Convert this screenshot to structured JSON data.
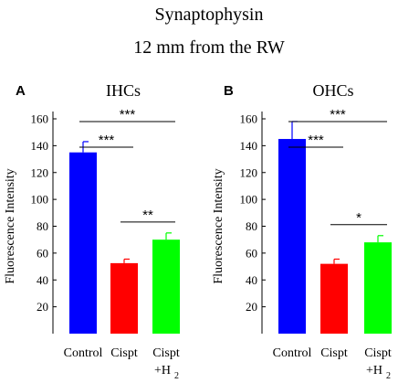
{
  "figure": {
    "title": "Synaptophysin",
    "subtitle": "12 mm from the RW"
  },
  "chart_data": [
    {
      "type": "bar",
      "panel_label": "A",
      "title": "IHCs",
      "ylabel": "Fluorescence Intensity",
      "xlabel": "",
      "ylim": [
        0,
        160
      ],
      "yticks": [
        "20",
        "40",
        "60",
        "80",
        "100",
        "120",
        "140",
        "160"
      ],
      "grid": false,
      "categories": [
        {
          "line1": "Control",
          "line2": ""
        },
        {
          "line1": "Cispt",
          "line2": ""
        },
        {
          "line1": "Cispt",
          "line2": "+H",
          "sub": "2"
        }
      ],
      "values": [
        135,
        52.5,
        70
      ],
      "errors": [
        8,
        3,
        5
      ],
      "colors": [
        "#0000ff",
        "#ff0000",
        "#00ff00"
      ],
      "significance": [
        {
          "from": 0,
          "to": 1,
          "label": "***",
          "level": 1
        },
        {
          "from": 0,
          "to": 2,
          "label": "***",
          "level": 2
        },
        {
          "from": 1,
          "to": 2,
          "label": "**",
          "level": 0
        }
      ]
    },
    {
      "type": "bar",
      "panel_label": "B",
      "title": "OHCs",
      "ylabel": "Fluorescence Intensity",
      "xlabel": "",
      "ylim": [
        0,
        160
      ],
      "yticks": [
        "20",
        "40",
        "60",
        "80",
        "100",
        "120",
        "140",
        "160"
      ],
      "grid": false,
      "categories": [
        {
          "line1": "Control",
          "line2": ""
        },
        {
          "line1": "Cispt",
          "line2": ""
        },
        {
          "line1": "Cispt",
          "line2": "+H",
          "sub": "2"
        }
      ],
      "values": [
        145,
        52,
        68
      ],
      "errors": [
        13,
        3.5,
        5
      ],
      "colors": [
        "#0000ff",
        "#ff0000",
        "#00ff00"
      ],
      "significance": [
        {
          "from": 0,
          "to": 1,
          "label": "***",
          "level": 1
        },
        {
          "from": 0,
          "to": 2,
          "label": "***",
          "level": 2
        },
        {
          "from": 1,
          "to": 2,
          "label": "*",
          "level": 0
        }
      ]
    }
  ]
}
